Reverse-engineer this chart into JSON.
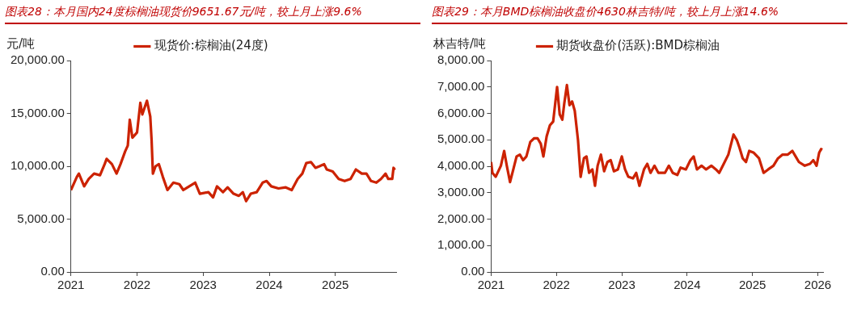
{
  "chart_data": [
    {
      "type": "line",
      "title": "图表28：本月国内24度棕榈油现货价9651.67元/吨，较上月上涨9.6%",
      "ylabel": "元/吨",
      "legend": "top",
      "grid": false,
      "marker": "none",
      "line_style": "solid",
      "xlim": [
        2021,
        2025.92
      ],
      "xticks": [
        2021,
        2022,
        2023,
        2024,
        2025
      ],
      "ylim": [
        0,
        20000
      ],
      "yticks": [
        {
          "value": 0,
          "label": "0.00"
        },
        {
          "value": 5000,
          "label": "5,000.00"
        },
        {
          "value": 10000,
          "label": "10,000.00"
        },
        {
          "value": 15000,
          "label": "15,000.00"
        },
        {
          "value": 20000,
          "label": "20,000.00"
        }
      ],
      "series": [
        {
          "name": "现货价:棕榈油(24度)",
          "color": "#cc2200",
          "x": [
            2021.0,
            2021.09,
            2021.12,
            2021.2,
            2021.27,
            2021.35,
            2021.44,
            2021.51,
            2021.54,
            2021.62,
            2021.69,
            2021.75,
            2021.82,
            2021.86,
            2021.89,
            2021.93,
            2022.0,
            2022.05,
            2022.08,
            2022.15,
            2022.2,
            2022.22,
            2022.24,
            2022.28,
            2022.33,
            2022.39,
            2022.46,
            2022.55,
            2022.64,
            2022.7,
            2022.79,
            2022.88,
            2022.95,
            2023.08,
            2023.15,
            2023.21,
            2023.3,
            2023.37,
            2023.46,
            2023.54,
            2023.6,
            2023.65,
            2023.72,
            2023.81,
            2023.9,
            2023.96,
            2024.03,
            2024.14,
            2024.25,
            2024.34,
            2024.43,
            2024.5,
            2024.56,
            2024.63,
            2024.7,
            2024.76,
            2024.83,
            2024.87,
            2024.96,
            2025.05,
            2025.14,
            2025.23,
            2025.31,
            2025.4,
            2025.47,
            2025.54,
            2025.62,
            2025.69,
            2025.76,
            2025.8,
            2025.86,
            2025.88,
            2025.9
          ],
          "values": [
            7750,
            9000,
            9300,
            8100,
            8800,
            9300,
            9150,
            10200,
            10700,
            10200,
            9300,
            10200,
            11400,
            11950,
            14400,
            12700,
            13200,
            16000,
            14900,
            16200,
            14700,
            12500,
            9300,
            10000,
            10200,
            9000,
            7750,
            8450,
            8300,
            7750,
            8100,
            8450,
            7400,
            7550,
            7050,
            8100,
            7550,
            8000,
            7400,
            7200,
            7550,
            6700,
            7400,
            7550,
            8450,
            8600,
            8100,
            7900,
            8000,
            7750,
            8800,
            9300,
            10300,
            10400,
            9850,
            10000,
            10200,
            9700,
            9500,
            8800,
            8600,
            8800,
            9700,
            9300,
            9300,
            8600,
            8450,
            8800,
            9300,
            8800,
            8800,
            9850,
            9650
          ]
        }
      ]
    },
    {
      "type": "line",
      "title": "图表29：本月BMD棕榈油收盘价4630林吉特/吨，较上月上涨14.6%",
      "ylabel": "林吉特/吨",
      "legend": "top",
      "grid": false,
      "marker": "none",
      "line_style": "solid",
      "xlim": [
        2021,
        2026.08
      ],
      "xticks": [
        2021,
        2022,
        2023,
        2024,
        2025,
        2026
      ],
      "ylim": [
        0,
        8000
      ],
      "yticks": [
        {
          "value": 0,
          "label": "0.00"
        },
        {
          "value": 1000,
          "label": "1,000.00"
        },
        {
          "value": 2000,
          "label": "2,000.00"
        },
        {
          "value": 3000,
          "label": "3,000.00"
        },
        {
          "value": 4000,
          "label": "4,000.00"
        },
        {
          "value": 5000,
          "label": "5,000.00"
        },
        {
          "value": 6000,
          "label": "6,000.00"
        },
        {
          "value": 7000,
          "label": "7,000.00"
        },
        {
          "value": 8000,
          "label": "8,000.00"
        }
      ],
      "series": [
        {
          "name": "期货收盘价(活跃):BMD棕榈油",
          "color": "#cc2200",
          "x": [
            2021.0,
            2021.02,
            2021.07,
            2021.15,
            2021.2,
            2021.24,
            2021.29,
            2021.34,
            2021.39,
            2021.44,
            2021.49,
            2021.54,
            2021.6,
            2021.66,
            2021.71,
            2021.76,
            2021.8,
            2021.85,
            2021.9,
            2021.95,
            2022.01,
            2022.05,
            2022.09,
            2022.12,
            2022.16,
            2022.2,
            2022.24,
            2022.28,
            2022.33,
            2022.37,
            2022.42,
            2022.46,
            2022.5,
            2022.55,
            2022.59,
            2022.63,
            2022.68,
            2022.73,
            2022.78,
            2022.83,
            2022.88,
            2022.94,
            2023.0,
            2023.05,
            2023.1,
            2023.17,
            2023.22,
            2023.27,
            2023.34,
            2023.39,
            2023.44,
            2023.5,
            2023.56,
            2023.66,
            2023.72,
            2023.78,
            2023.85,
            2023.9,
            2023.98,
            2024.05,
            2024.1,
            2024.15,
            2024.22,
            2024.29,
            2024.37,
            2024.44,
            2024.49,
            2024.56,
            2024.63,
            2024.71,
            2024.76,
            2024.8,
            2024.85,
            2024.9,
            2024.95,
            2025.02,
            2025.1,
            2025.17,
            2025.24,
            2025.32,
            2025.39,
            2025.46,
            2025.54,
            2025.61,
            2025.66,
            2025.71,
            2025.8,
            2025.88,
            2025.93,
            2025.98,
            2026.02,
            2026.05,
            2026.07
          ],
          "values": [
            4160,
            3750,
            3600,
            4020,
            4580,
            4020,
            3400,
            3880,
            4370,
            4440,
            4230,
            4370,
            4920,
            5060,
            5060,
            4850,
            4370,
            5130,
            5550,
            5690,
            7000,
            5960,
            5760,
            6380,
            7070,
            6310,
            6450,
            6100,
            4990,
            3600,
            4300,
            4370,
            3750,
            3880,
            3260,
            4020,
            4440,
            3810,
            4160,
            4230,
            3810,
            3880,
            4370,
            3880,
            3600,
            3540,
            3750,
            3260,
            3880,
            4090,
            3750,
            4020,
            3750,
            3750,
            4020,
            3750,
            3670,
            3950,
            3880,
            4230,
            4370,
            3880,
            4020,
            3880,
            4020,
            3880,
            3750,
            4090,
            4440,
            5200,
            4990,
            4710,
            4300,
            4160,
            4580,
            4510,
            4300,
            3750,
            3880,
            4020,
            4300,
            4440,
            4440,
            4580,
            4370,
            4160,
            4020,
            4090,
            4230,
            4020,
            4510,
            4650,
            4630
          ]
        }
      ]
    }
  ]
}
